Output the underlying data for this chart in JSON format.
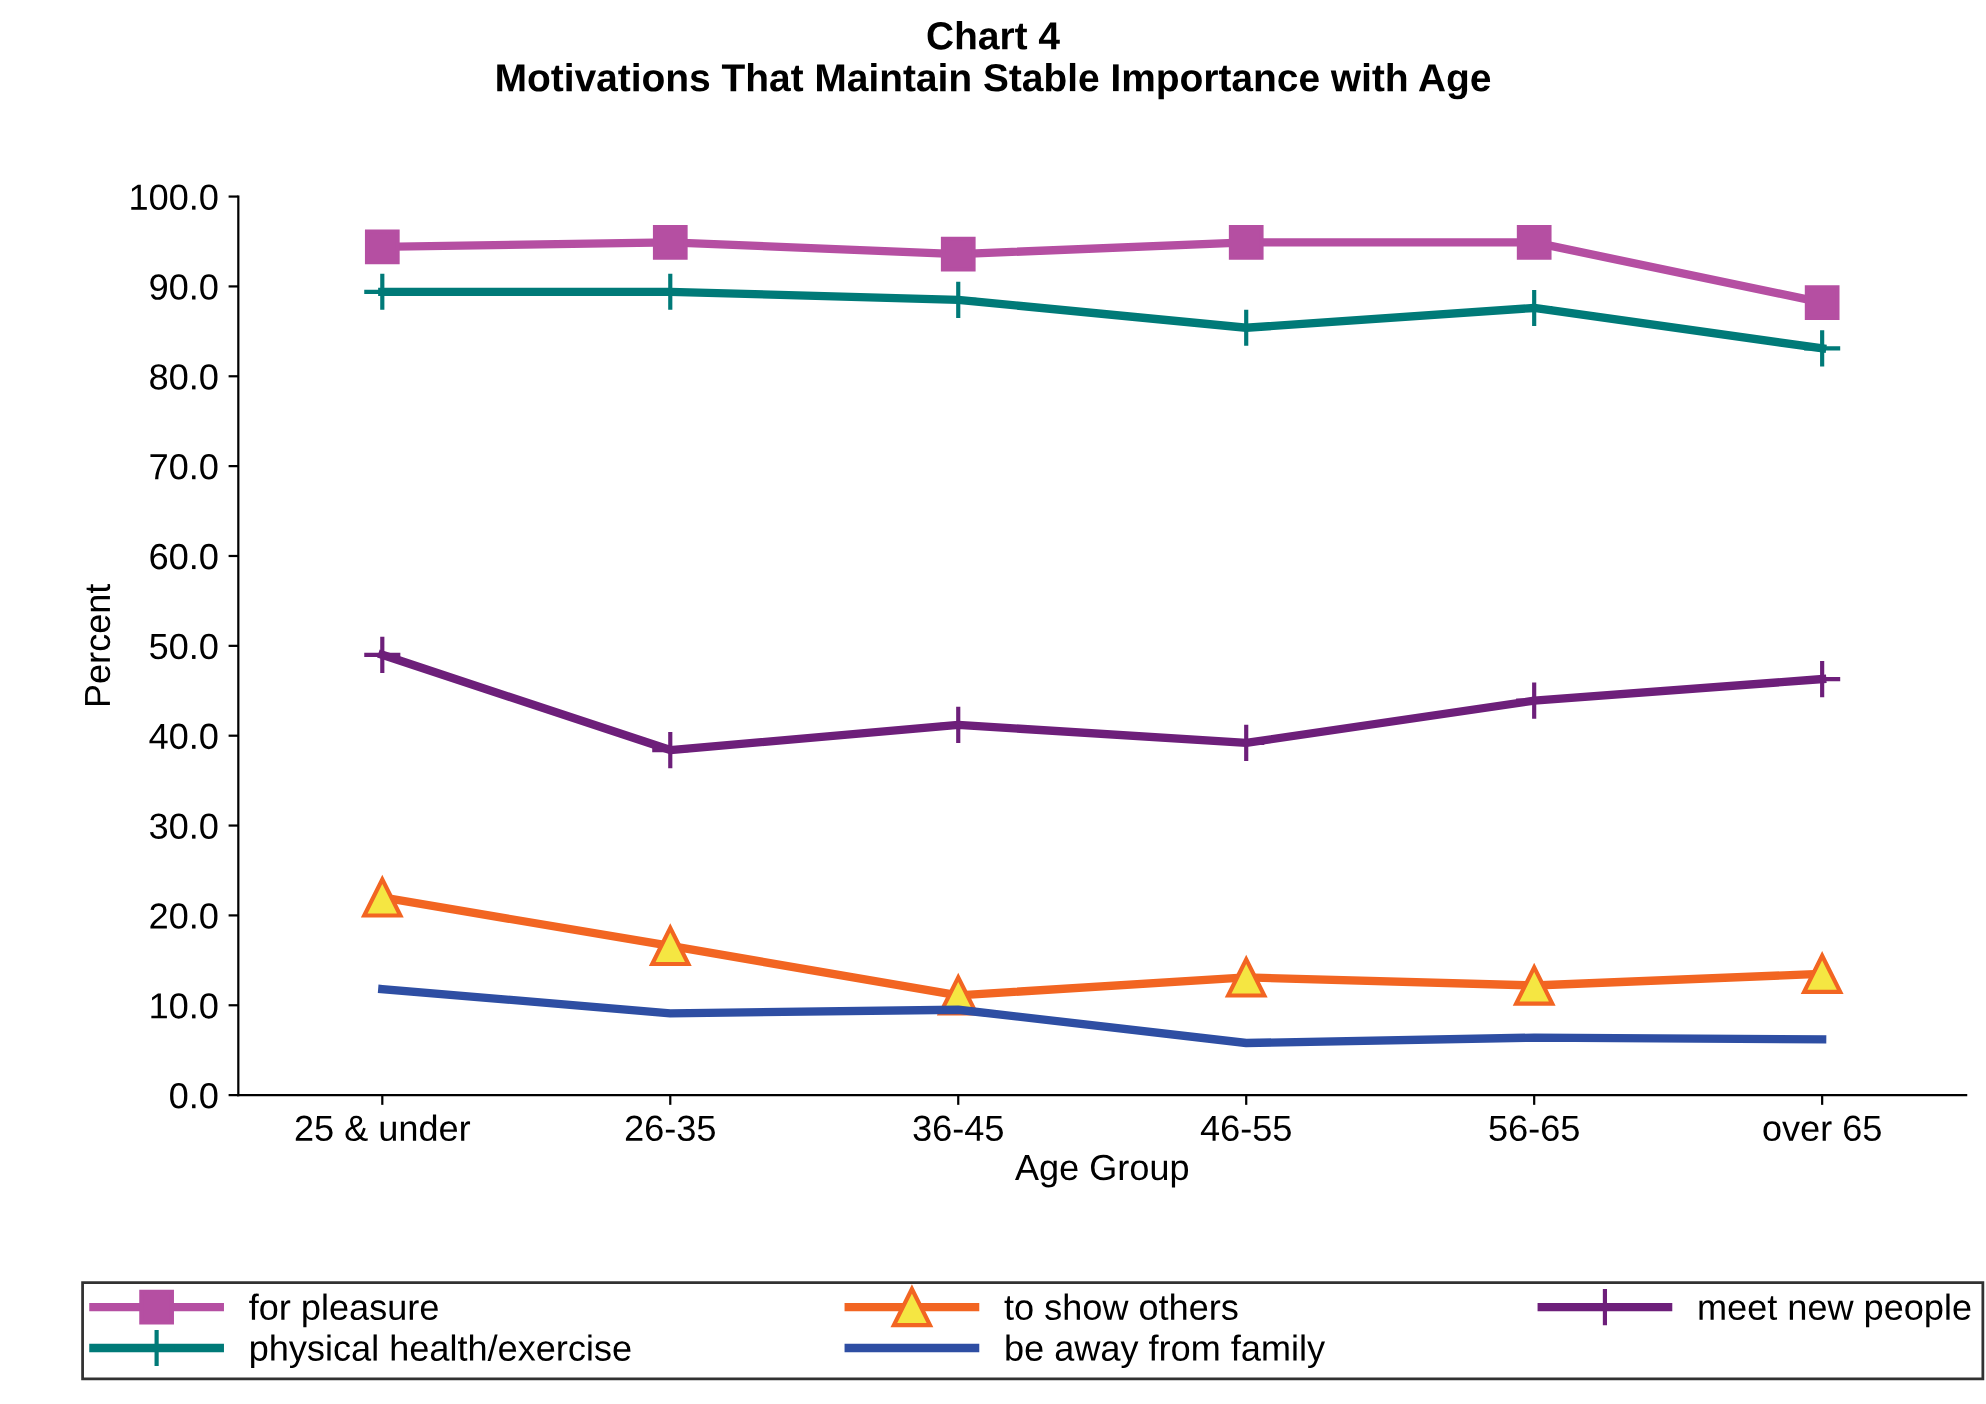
{
  "chart_data": {
    "type": "line",
    "title": "Chart 4\nMotivations That Maintain Stable Importance with Age",
    "xlabel": "Age Group",
    "ylabel": "Percent",
    "categories": [
      "25 & under",
      "26-35",
      "36-45",
      "46-55",
      "56-65",
      "over 65"
    ],
    "series": [
      {
        "name": "for pleasure",
        "color": "#b54fa2",
        "marker": "square",
        "values": [
          94.4,
          94.9,
          93.6,
          94.9,
          94.9,
          88.2
        ]
      },
      {
        "name": "to show others",
        "color": "#f26522",
        "marker": "triangle",
        "values": [
          22.0,
          16.6,
          11.1,
          13.1,
          12.2,
          13.5
        ]
      },
      {
        "name": "meet new people",
        "color": "#6d1f7a",
        "marker": "cross",
        "values": [
          49.0,
          38.4,
          41.2,
          39.2,
          43.9,
          46.3
        ]
      },
      {
        "name": "physical health/exercise",
        "color": "#007a78",
        "marker": "cross",
        "values": [
          89.4,
          89.4,
          88.5,
          85.4,
          87.6,
          83.1
        ]
      },
      {
        "name": "be away from family",
        "color": "#2e4ea3",
        "marker": "none",
        "values": [
          11.8,
          9.1,
          9.5,
          5.8,
          6.4,
          6.2
        ]
      }
    ],
    "ylim": [
      0,
      100
    ],
    "yticks": [
      {
        "value": 0,
        "label": "0.0"
      },
      {
        "value": 10,
        "label": "10.0"
      },
      {
        "value": 20,
        "label": "20.0"
      },
      {
        "value": 30,
        "label": "30.0"
      },
      {
        "value": 40,
        "label": "40.0"
      },
      {
        "value": 50,
        "label": "50.0"
      },
      {
        "value": 60,
        "label": "60.0"
      },
      {
        "value": 70,
        "label": "70.0"
      },
      {
        "value": 80,
        "label": "80.0"
      },
      {
        "value": 90,
        "label": "90.0"
      },
      {
        "value": 100,
        "label": "100.0"
      }
    ],
    "grid": false,
    "legend": "bottom"
  }
}
